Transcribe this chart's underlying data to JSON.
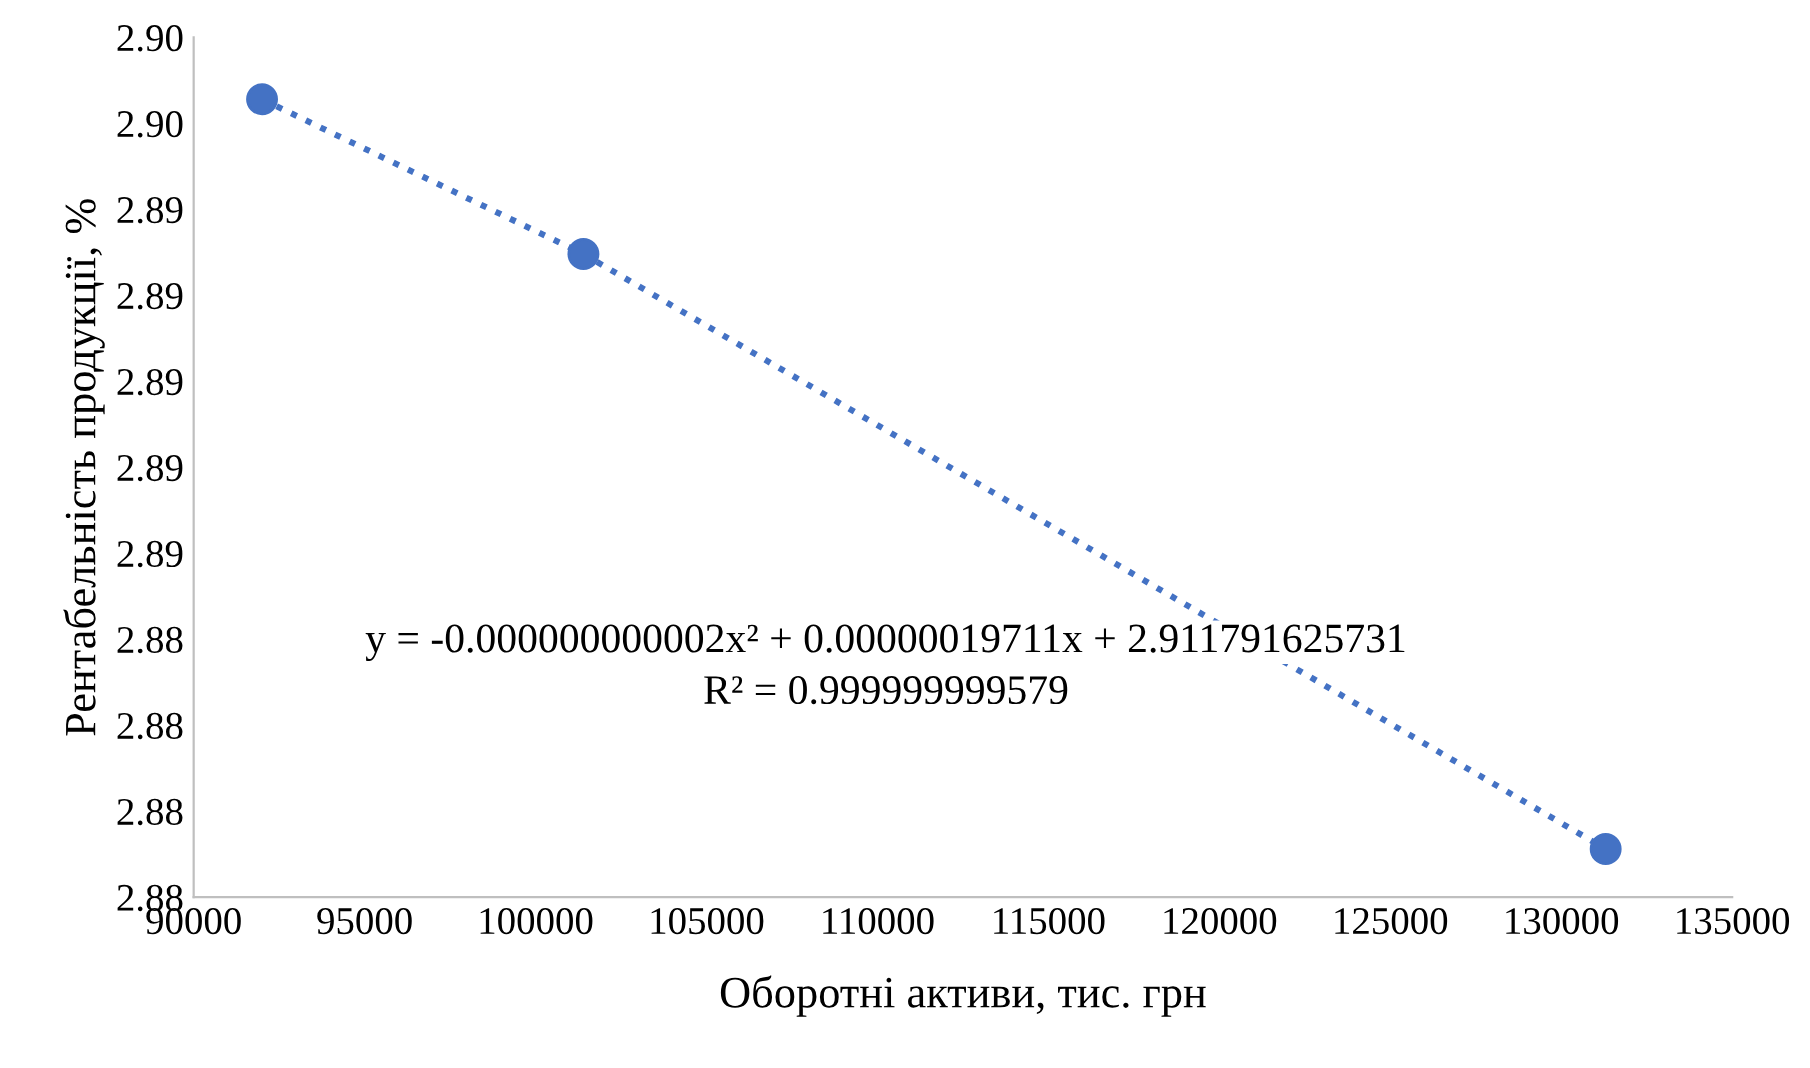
{
  "chart_data": {
    "type": "scatter",
    "xlabel": "Оборотні активи, тис. грн",
    "ylabel": "Рентабельність продукції, %",
    "series": [
      {
        "color": "#4472c4",
        "marker": "circle",
        "x": [
          92000,
          101400,
          131300
        ],
        "values": [
          2.8982,
          2.8937,
          2.8764
        ]
      },
      {
        "type": "line",
        "color": "#4472c4",
        "line_style": "dotted",
        "marker": "none",
        "x": [
          92000,
          101400,
          131300
        ],
        "values": [
          2.8982,
          2.8937,
          2.8764
        ]
      }
    ],
    "annotations": [
      "y = -0.000000000002x² + 0.00000019711x + 2.911791625731",
      "R² = 0.999999999579"
    ],
    "xlim": [
      90000,
      135000
    ],
    "xticks": [
      90000,
      95000,
      100000,
      105000,
      110000,
      115000,
      120000,
      125000,
      130000,
      135000
    ],
    "ylim": [
      2.875,
      2.9
    ],
    "yticks": [
      {
        "value": 2.875,
        "label": "2.88"
      },
      {
        "value": 2.8775,
        "label": "2.88"
      },
      {
        "value": 2.88,
        "label": "2.88"
      },
      {
        "value": 2.8825,
        "label": "2.88"
      },
      {
        "value": 2.885,
        "label": "2.89"
      },
      {
        "value": 2.8875,
        "label": "2.89"
      },
      {
        "value": 2.89,
        "label": "2.89"
      },
      {
        "value": 2.8925,
        "label": "2.89"
      },
      {
        "value": 2.895,
        "label": "2.89"
      },
      {
        "value": 2.8975,
        "label": "2.90"
      },
      {
        "value": 2.9,
        "label": "2.90"
      }
    ],
    "grid": false,
    "legend": false
  }
}
